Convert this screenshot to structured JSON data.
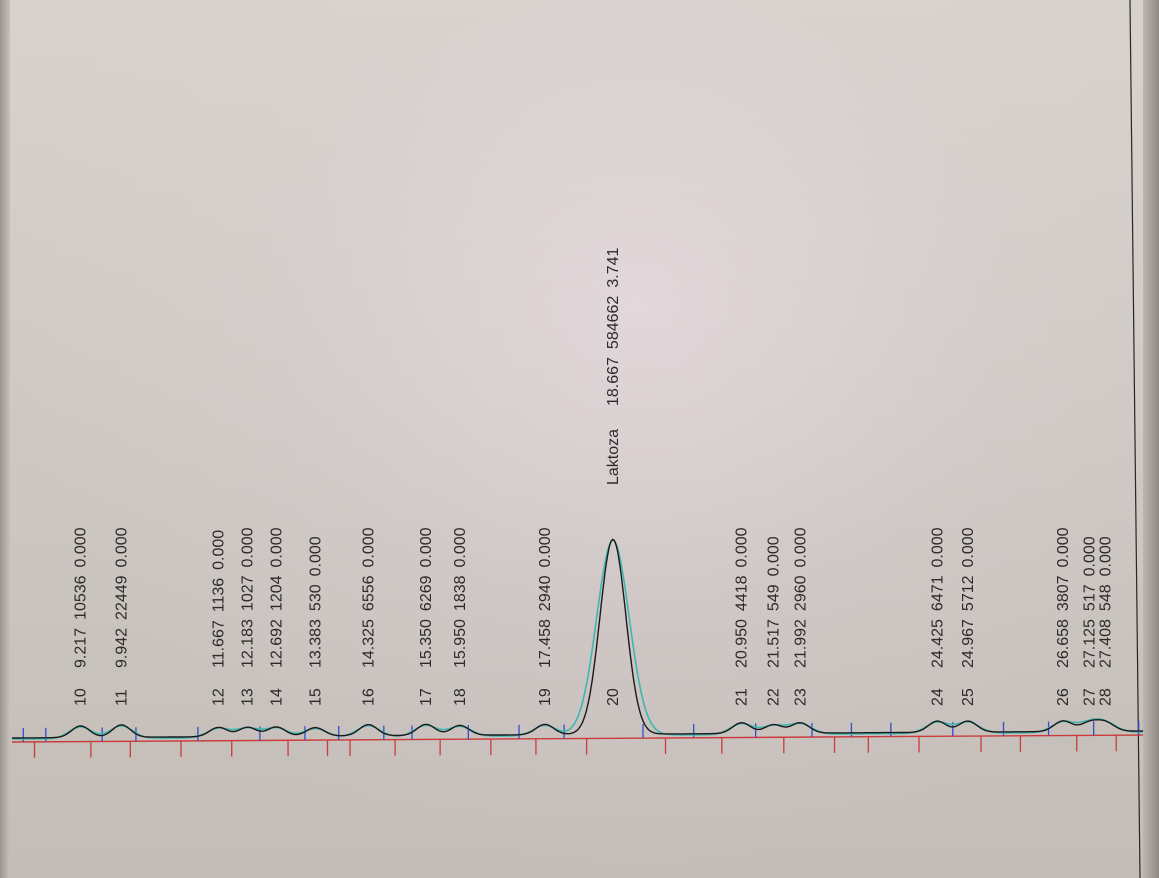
{
  "chart_data": {
    "type": "line",
    "x_unit_hint": "retention time",
    "xlim": [
      8.0,
      28.2
    ],
    "ylim": [
      0,
      584662
    ],
    "baseline_marks": [
      8.2,
      8.4,
      8.6,
      9.4,
      9.6,
      10.1,
      10.2,
      11.0,
      11.3,
      11.9,
      12.4,
      12.9,
      13.2,
      13.6,
      13.8,
      14.0,
      14.6,
      14.8,
      15.1,
      15.6,
      16.1,
      16.5,
      17.0,
      17.3,
      17.8,
      18.2,
      19.2,
      19.6,
      20.1,
      20.6,
      21.2,
      21.7,
      22.2,
      22.6,
      22.9,
      23.2,
      23.6,
      24.1,
      24.7,
      25.2,
      25.6,
      25.9,
      26.4,
      26.9,
      27.2,
      27.6,
      28.0
    ],
    "peaks": [
      {
        "id": "10",
        "name": "",
        "time": 9.217,
        "area": 10536,
        "conc": 0.0
      },
      {
        "id": "11",
        "name": "",
        "time": 9.942,
        "area": 22449,
        "conc": 0.0
      },
      {
        "id": "12",
        "name": "",
        "time": 11.667,
        "area": 1136,
        "conc": 0.0
      },
      {
        "id": "13",
        "name": "",
        "time": 12.183,
        "area": 1027,
        "conc": 0.0
      },
      {
        "id": "14",
        "name": "",
        "time": 12.692,
        "area": 1204,
        "conc": 0.0
      },
      {
        "id": "15",
        "name": "",
        "time": 13.383,
        "area": 530,
        "conc": 0.0
      },
      {
        "id": "16",
        "name": "",
        "time": 14.325,
        "area": 6556,
        "conc": 0.0
      },
      {
        "id": "17",
        "name": "",
        "time": 15.35,
        "area": 6269,
        "conc": 0.0
      },
      {
        "id": "18",
        "name": "",
        "time": 15.95,
        "area": 1838,
        "conc": 0.0
      },
      {
        "id": "19",
        "name": "",
        "time": 17.458,
        "area": 2940,
        "conc": 0.0
      },
      {
        "id": "20",
        "name": "Laktoza",
        "time": 18.667,
        "area": 584662,
        "conc": 3.741
      },
      {
        "id": "21",
        "name": "",
        "time": 20.95,
        "area": 4418,
        "conc": 0.0
      },
      {
        "id": "22",
        "name": "",
        "time": 21.517,
        "area": 549,
        "conc": 0.0
      },
      {
        "id": "23",
        "name": "",
        "time": 21.992,
        "area": 2960,
        "conc": 0.0
      },
      {
        "id": "24",
        "name": "",
        "time": 24.425,
        "area": 6471,
        "conc": 0.0
      },
      {
        "id": "25",
        "name": "",
        "time": 24.967,
        "area": 5712,
        "conc": 0.0
      },
      {
        "id": "26",
        "name": "",
        "time": 26.658,
        "area": 3807,
        "conc": 0.0
      },
      {
        "id": "27",
        "name": "",
        "time": 27.125,
        "area": 517,
        "conc": 0.0
      },
      {
        "id": "28",
        "name": "",
        "time": 27.408,
        "area": 548,
        "conc": 0.0
      }
    ],
    "colors": {
      "black_trace": "#1a1a1a",
      "cyan_trace": "#3fb6b0",
      "baseline": "#cc3b3b",
      "start_marks": "#2f4fcf",
      "end_marks": "#cc3b3b"
    }
  }
}
